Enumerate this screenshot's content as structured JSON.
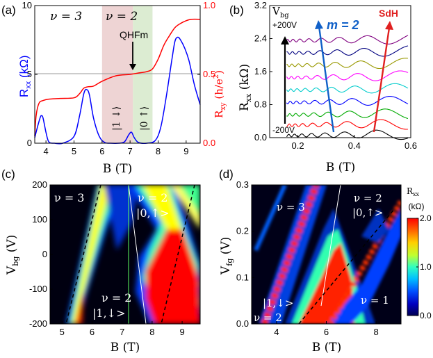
{
  "chart_data": [
    {
      "panel": "(a)",
      "type": "line",
      "xlabel": "B (T)",
      "ylabel_left": "R",
      "ylabel_left_sub": "xx",
      "ylabel_left_unit": " (kΩ)",
      "ylabel_right": "R",
      "ylabel_right_sub": "xy",
      "ylabel_right_unit": " (h/e",
      "ylabel_right_sup": "2",
      "ylabel_right_close": ")",
      "xlim": [
        3.6,
        9.5
      ],
      "ylim_left": [
        0,
        10
      ],
      "ylim_right": [
        0,
        1.0
      ],
      "xticks": [
        "4",
        "5",
        "6",
        "7",
        "8",
        "9"
      ],
      "yticks_left": [
        "0",
        "5",
        "10"
      ],
      "yticks_right": [
        "0.0",
        "0.5",
        "1.0"
      ],
      "colors": {
        "rxx": "#0000ff",
        "rxy": "#ff0000",
        "band1": "#e8c8c8",
        "band2": "#d5e8c8"
      },
      "annotations": {
        "nu3": "ν = 3",
        "nu2": "ν = 2",
        "qhfm": "QHFm",
        "state1": "|1 ↓⟩",
        "state0": "|0 ↑⟩"
      },
      "bands": [
        {
          "from": 6.0,
          "to": 7.1
        },
        {
          "from": 7.1,
          "to": 7.8
        }
      ],
      "series": [
        {
          "name": "Rxx",
          "axis": "left",
          "x": [
            3.6,
            3.7,
            3.8,
            3.85,
            3.9,
            4.0,
            4.1,
            4.3,
            4.6,
            5.0,
            5.2,
            5.35,
            5.45,
            5.55,
            5.7,
            5.9,
            6.1,
            6.3,
            6.6,
            6.8,
            6.95,
            7.05,
            7.15,
            7.3,
            7.6,
            7.9,
            8.1,
            8.3,
            8.5,
            8.6,
            8.7,
            8.8,
            8.95,
            9.1,
            9.3,
            9.5
          ],
          "y": [
            0.4,
            1.2,
            1.9,
            2.0,
            1.8,
            0.8,
            0.1,
            0.0,
            0.0,
            0.5,
            2.0,
            3.6,
            3.9,
            3.5,
            1.8,
            0.5,
            0.05,
            0.0,
            0.0,
            0.1,
            0.6,
            0.8,
            0.4,
            0.05,
            0.0,
            0.2,
            1.2,
            3.5,
            6.2,
            7.4,
            7.7,
            7.5,
            6.9,
            6.0,
            4.2,
            2.8
          ]
        },
        {
          "name": "Rxy",
          "axis": "right",
          "x": [
            3.6,
            3.65,
            3.75,
            3.9,
            4.1,
            4.5,
            5.0,
            5.2,
            5.35,
            5.5,
            5.7,
            6.0,
            6.5,
            7.0,
            7.3,
            7.6,
            7.8,
            8.0,
            8.2,
            8.4,
            8.6,
            8.8,
            9.0,
            9.2,
            9.5
          ],
          "y": [
            0.05,
            0.2,
            0.29,
            0.31,
            0.32,
            0.325,
            0.33,
            0.36,
            0.4,
            0.41,
            0.415,
            0.45,
            0.49,
            0.5,
            0.51,
            0.52,
            0.54,
            0.61,
            0.71,
            0.78,
            0.84,
            0.87,
            0.89,
            0.9,
            0.9
          ]
        }
      ]
    },
    {
      "panel": "(b)",
      "type": "line",
      "xlabel": "B (T)",
      "ylabel": "R",
      "ylabel_sub": "xx",
      "ylabel_unit": " (kΩ)",
      "xlim": [
        0.1,
        0.6
      ],
      "ylim": [
        0,
        3.2
      ],
      "xticks": [
        "0.2",
        "0.4",
        "0.6"
      ],
      "yticks": [
        "0.0",
        "0.8",
        "1.6",
        "2.4",
        "3.2"
      ],
      "annotations": {
        "vbg": "V",
        "vbg_sub": "bg",
        "top_voltage": "+200V",
        "bottom_voltage": "-200V",
        "m": "m = 2",
        "sdh": "SdH"
      },
      "trace_colors": [
        "#000000",
        "#ff0000",
        "#00aa00",
        "#0000ff",
        "#00cccc",
        "#ff00ff",
        "#999900",
        "#000080",
        "#800080"
      ],
      "trace_offsets": [
        0.05,
        0.3,
        0.55,
        0.85,
        1.15,
        1.45,
        1.75,
        2.05,
        2.35
      ],
      "arrow_colors": {
        "vbg": "#000000",
        "m": "#1060c8",
        "sdh": "#e02020"
      }
    },
    {
      "panel": "(c)",
      "type": "heatmap",
      "xlabel": "B (T)",
      "ylabel": "V",
      "ylabel_sub": "bg",
      "ylabel_unit": " (V)",
      "xlim": [
        4.6,
        9.6
      ],
      "ylim": [
        -200,
        200
      ],
      "xticks": [
        "5",
        "6",
        "7",
        "8",
        "9"
      ],
      "yticks": [
        "200",
        "100",
        "0",
        "-100",
        "-200"
      ],
      "annotations": {
        "nu3": "ν = 3",
        "nu2_top": "ν = 2",
        "state_top": "|0,↑>",
        "nu2_bottom": "ν = 2",
        "state_bottom": "|1,↓>"
      }
    },
    {
      "panel": "(d)",
      "type": "heatmap",
      "xlabel": "B (T)",
      "ylabel": "V",
      "ylabel_sub": "fg",
      "ylabel_unit": " (V)",
      "xlim": [
        3.0,
        9.0
      ],
      "ylim": [
        0.0,
        0.3
      ],
      "xticks": [
        "4",
        "6",
        "8"
      ],
      "yticks": [
        "0.3",
        "0.2",
        "0.1",
        "0.0"
      ],
      "annotations": {
        "nu3": "ν = 3",
        "nu2_top": "ν = 2",
        "state_top": "|0,↑>",
        "state_mid": "|1,↓>",
        "nu2_bottom": "ν = 2",
        "nu1": "ν = 1"
      },
      "colorbar": {
        "title": "R",
        "title_sub": "xx",
        "unit": "(kΩ)",
        "ticks": [
          "2.0",
          "1.0",
          "0.0"
        ],
        "range": [
          0,
          2.0
        ]
      }
    }
  ]
}
